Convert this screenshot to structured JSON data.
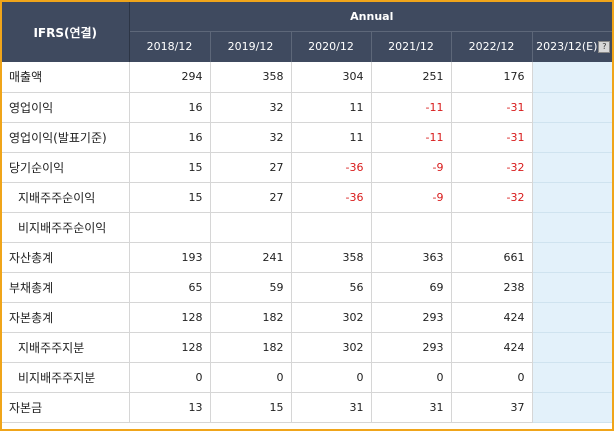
{
  "header": {
    "ifrs_label": "IFRS(연결)",
    "period_label": "Annual",
    "years": [
      "2018/12",
      "2019/12",
      "2020/12",
      "2021/12",
      "2022/12"
    ],
    "estimate_year": "2023/12(E)",
    "help_icon": "?"
  },
  "rows": [
    {
      "label": "매출액",
      "indent": false,
      "values": [
        "294",
        "358",
        "304",
        "251",
        "176"
      ]
    },
    {
      "label": "영업이익",
      "indent": false,
      "values": [
        "16",
        "32",
        "11",
        "-11",
        "-31"
      ]
    },
    {
      "label": "영업이익(발표기준)",
      "indent": false,
      "values": [
        "16",
        "32",
        "11",
        "-11",
        "-31"
      ]
    },
    {
      "label": "당기순이익",
      "indent": false,
      "values": [
        "15",
        "27",
        "-36",
        "-9",
        "-32"
      ]
    },
    {
      "label": "지배주주순이익",
      "indent": true,
      "values": [
        "15",
        "27",
        "-36",
        "-9",
        "-32"
      ]
    },
    {
      "label": "비지배주주순이익",
      "indent": true,
      "values": [
        "",
        "",
        "",
        "",
        ""
      ]
    },
    {
      "label": "자산총계",
      "indent": false,
      "values": [
        "193",
        "241",
        "358",
        "363",
        "661"
      ]
    },
    {
      "label": "부채총계",
      "indent": false,
      "values": [
        "65",
        "59",
        "56",
        "69",
        "238"
      ]
    },
    {
      "label": "자본총계",
      "indent": false,
      "values": [
        "128",
        "182",
        "302",
        "293",
        "424"
      ]
    },
    {
      "label": "지배주주지분",
      "indent": true,
      "values": [
        "128",
        "182",
        "302",
        "293",
        "424"
      ]
    },
    {
      "label": "비지배주주지분",
      "indent": true,
      "values": [
        "0",
        "0",
        "0",
        "0",
        "0"
      ]
    },
    {
      "label": "자본금",
      "indent": false,
      "values": [
        "13",
        "15",
        "31",
        "31",
        "37"
      ]
    }
  ],
  "colors": {
    "header_bg": "#3f4a5f",
    "negative_text": "#d81b1b",
    "estimate_column_bg": "#e3f1fa",
    "frame_border": "#f0a51a"
  }
}
